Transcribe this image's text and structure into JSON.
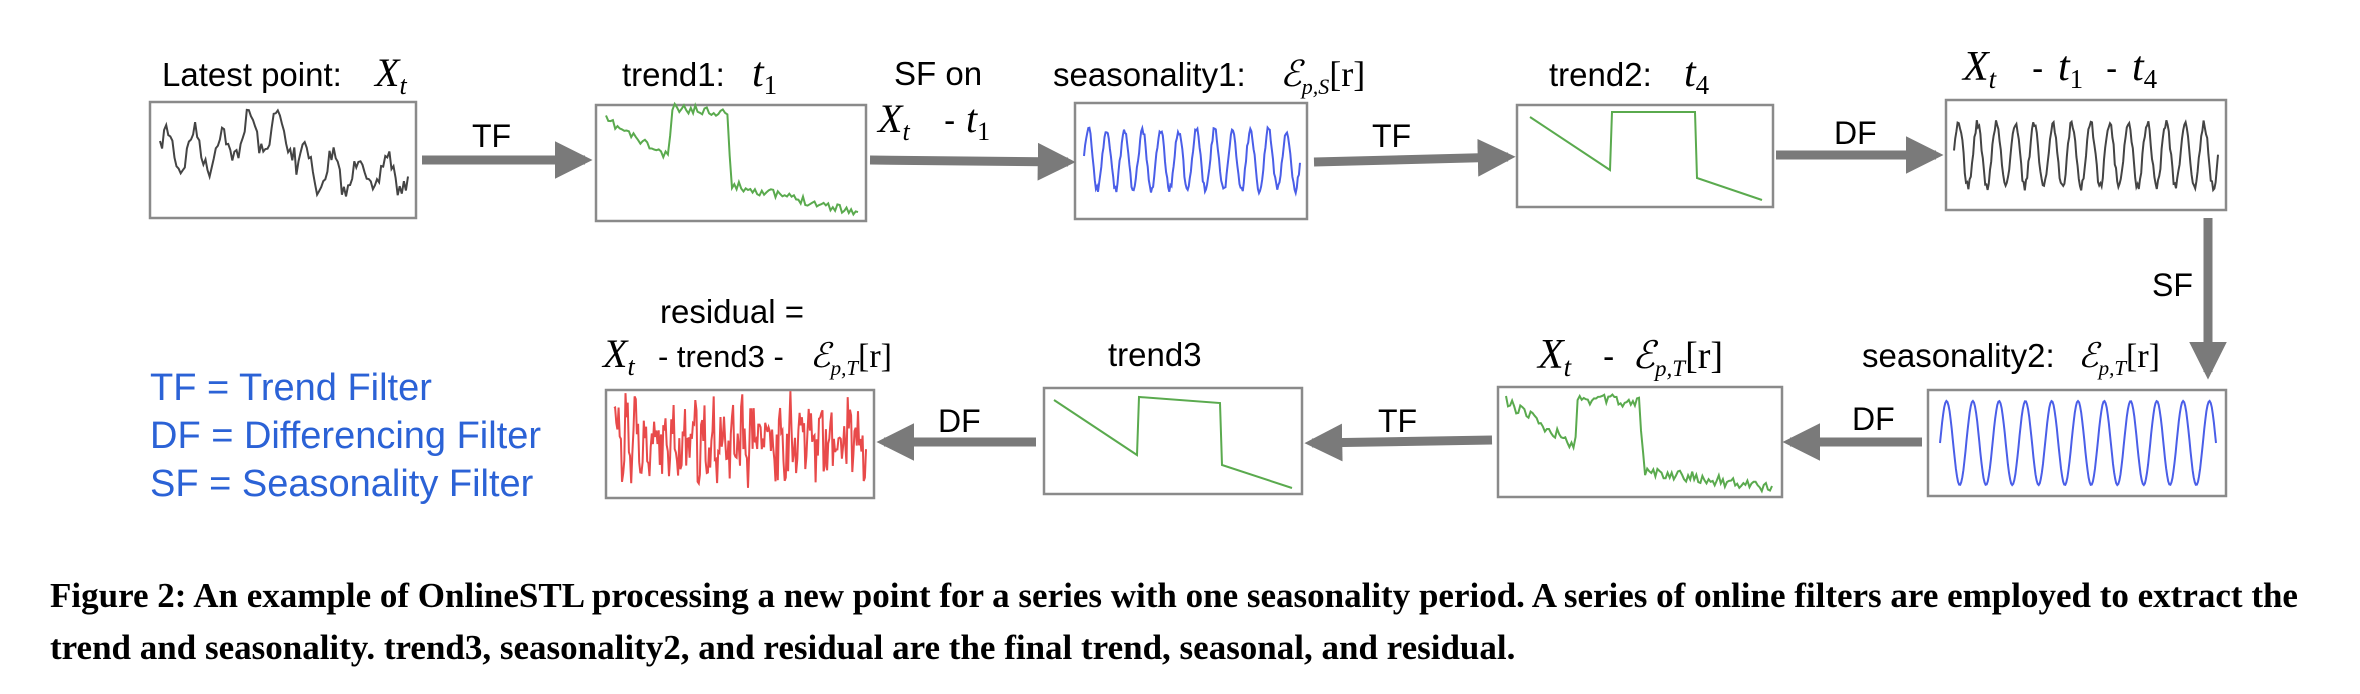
{
  "labels": {
    "latest_prefix": "Latest point: ",
    "trend1_prefix": "trend1: ",
    "sf_on": "SF on",
    "seasonality1_prefix": "seasonality1: ",
    "trend2_prefix": "trend2: ",
    "seasonality2_prefix": "seasonality2:",
    "trend3": "trend3",
    "residual_eq": "residual =",
    "residual_mid": "- trend3 -",
    "minus": "-"
  },
  "math": {
    "X": "X",
    "t_sub": "t",
    "t": "t",
    "one": "1",
    "four": "4",
    "E": "ℰ",
    "pS": "p,S",
    "pT": "p,T",
    "r": "[r]"
  },
  "filters": {
    "tf": "TF",
    "df": "DF",
    "sf": "SF"
  },
  "legend": {
    "tf": "TF = Trend Filter",
    "df": "DF = Differencing Filter",
    "sf": "SF = Seasonality Filter"
  },
  "caption": {
    "prefix": "Figure 2: ",
    "text": "An example of OnlineSTL processing a new point for a series with one seasonality period. A series of online filters are employed to extract the trend and seasonality. trend3, seasonality2, and residual are the final trend, seasonal, and residual."
  },
  "colors": {
    "raw": "#444444",
    "trend": "#5aaa4e",
    "seasonal": "#4a5ee8",
    "residual": "#e84a4a",
    "arrow": "#7a7a7a",
    "legend": "#2b62d6"
  }
}
